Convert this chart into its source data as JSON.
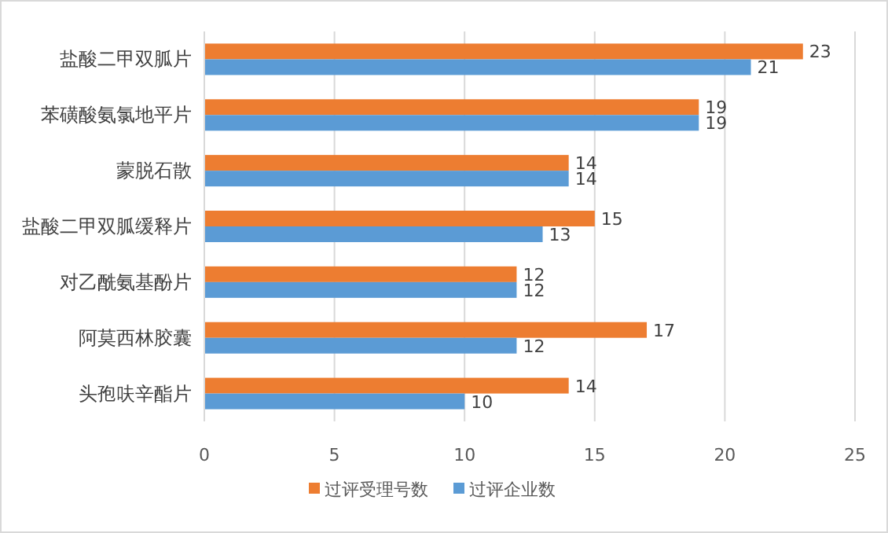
{
  "chart_data": {
    "type": "bar",
    "orientation": "horizontal",
    "categories": [
      "盐酸二甲双胍片",
      "苯磺酸氨氯地平片",
      "蒙脱石散",
      "盐酸二甲双胍缓释片",
      "对乙酰氨基酚片",
      "阿莫西林胶囊",
      "头孢呋辛酯片"
    ],
    "series": [
      {
        "name": "过评受理号数",
        "color": "#ed7d31",
        "values": [
          23,
          19,
          14,
          15,
          12,
          17,
          14
        ]
      },
      {
        "name": "过评企业数",
        "color": "#5b9bd5",
        "values": [
          21,
          19,
          14,
          13,
          12,
          12,
          10
        ]
      }
    ],
    "xlim": [
      0,
      25
    ],
    "xticks": [
      0,
      5,
      10,
      15,
      20,
      25
    ],
    "grid": "x",
    "legend": "bottom",
    "data_labels": true
  }
}
